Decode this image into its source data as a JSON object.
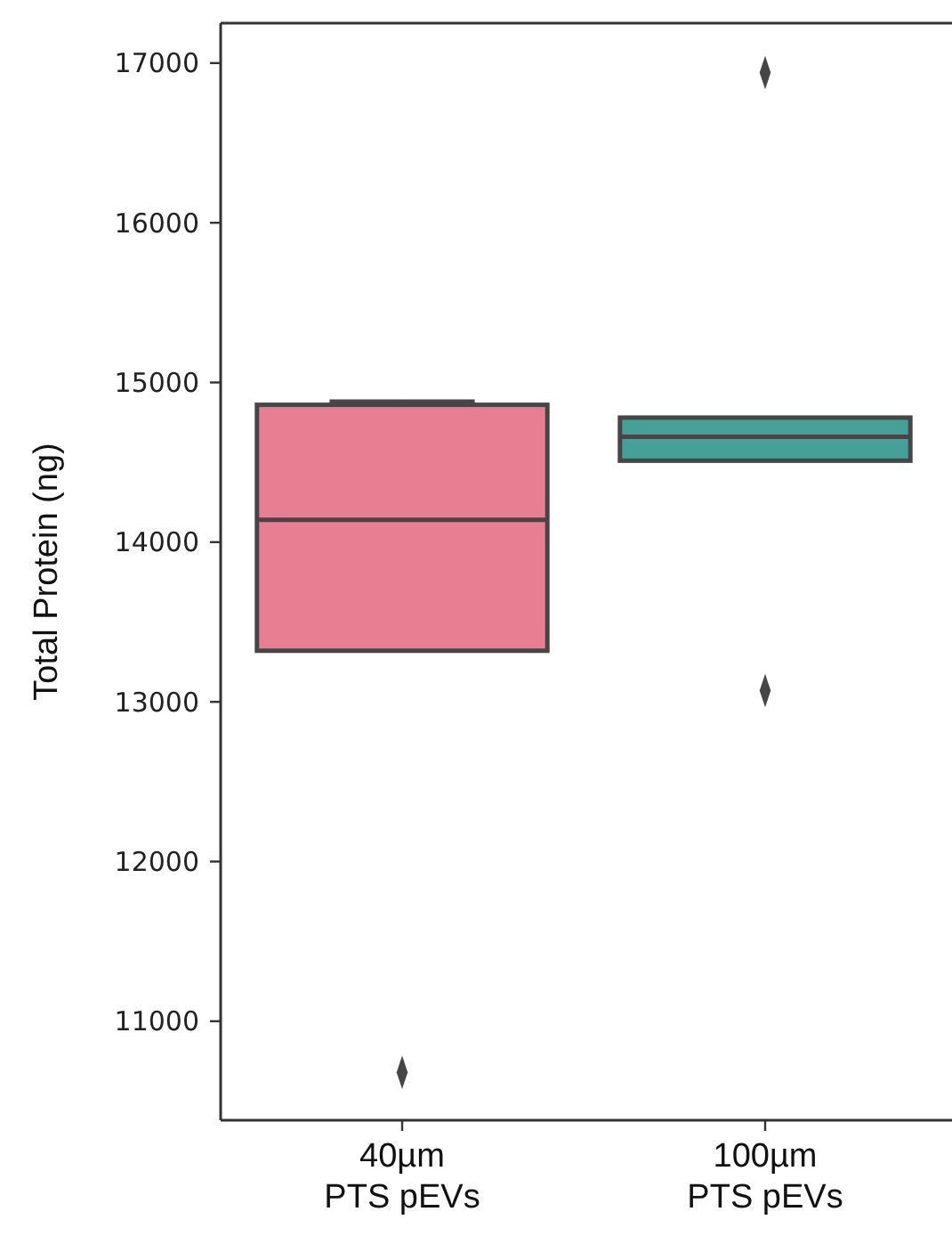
{
  "chart_data": {
    "type": "box",
    "ylabel": "Total Protein (ng)",
    "categories": [
      "40µm\nPTS pEVs",
      "100µm\nPTS pEVs"
    ],
    "colors": [
      "#e87e92",
      "#45a098"
    ],
    "boxes": [
      {
        "low": 13320,
        "q1": 13320,
        "median": 14140,
        "q3": 14860,
        "high": 14880,
        "outliers": [
          10680
        ]
      },
      {
        "low": 14510,
        "q1": 14510,
        "median": 14660,
        "q3": 14780,
        "high": 14780,
        "outliers": [
          16940,
          13070
        ]
      }
    ],
    "ylim": [
      10380,
      17250
    ],
    "yticks": [
      11000,
      12000,
      13000,
      14000,
      15000,
      16000,
      17000
    ],
    "marker": "diamond"
  }
}
